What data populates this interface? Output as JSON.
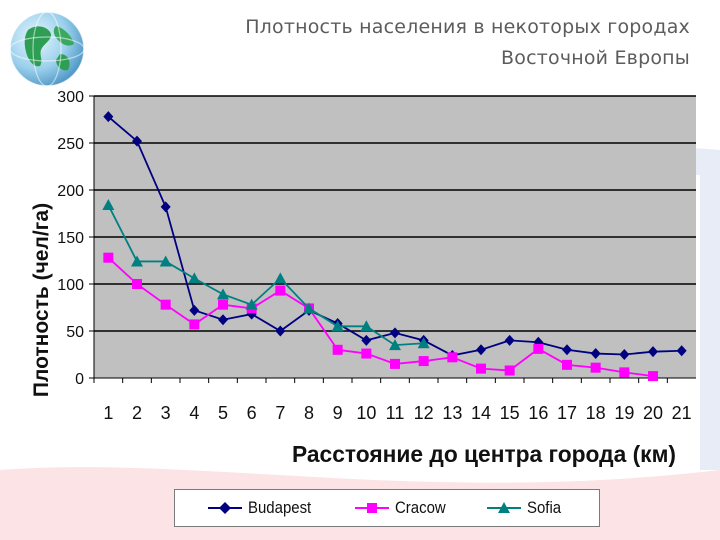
{
  "title_line1": "Плотность населения в некоторых городах",
  "title_line2": "Восточной Европы",
  "logo_icon": "globe-icon",
  "colors": {
    "plot_bg": "#c0c0c0",
    "grid": "#000000",
    "budapest": "#000080",
    "cracow": "#ff00ff",
    "sofia": "#008080",
    "title": "#5c5c5c"
  },
  "chart_data": {
    "type": "line",
    "title": "Плотность населения в некоторых городах Восточной Европы",
    "xlabel": "Расстояние до центра города (км)",
    "ylabel": "Плотность (чел/га)",
    "categories": [
      "1",
      "2",
      "3",
      "4",
      "5",
      "6",
      "7",
      "8",
      "9",
      "10",
      "11",
      "12",
      "13",
      "14",
      "15",
      "16",
      "17",
      "18",
      "19",
      "20",
      "21"
    ],
    "ylim": [
      0,
      300
    ],
    "yticks": [
      "0",
      "50",
      "100",
      "150",
      "200",
      "250",
      "300"
    ],
    "grid": true,
    "legend_position": "bottom",
    "series": [
      {
        "name": "Budapest",
        "marker": "diamond",
        "values": [
          278,
          252,
          182,
          72,
          62,
          68,
          50,
          72,
          58,
          40,
          48,
          40,
          24,
          30,
          40,
          38,
          30,
          26,
          25,
          28,
          29
        ]
      },
      {
        "name": "Cracow",
        "marker": "square",
        "values": [
          128,
          100,
          78,
          57,
          78,
          74,
          93,
          74,
          30,
          26,
          15,
          18,
          22,
          10,
          8,
          31,
          14,
          11,
          6,
          2,
          null
        ]
      },
      {
        "name": "Sofia",
        "marker": "triangle",
        "values": [
          184,
          124,
          124,
          106,
          89,
          78,
          106,
          74,
          55,
          55,
          35,
          37,
          null,
          null,
          null,
          null,
          null,
          null,
          null,
          null,
          null
        ]
      }
    ]
  }
}
